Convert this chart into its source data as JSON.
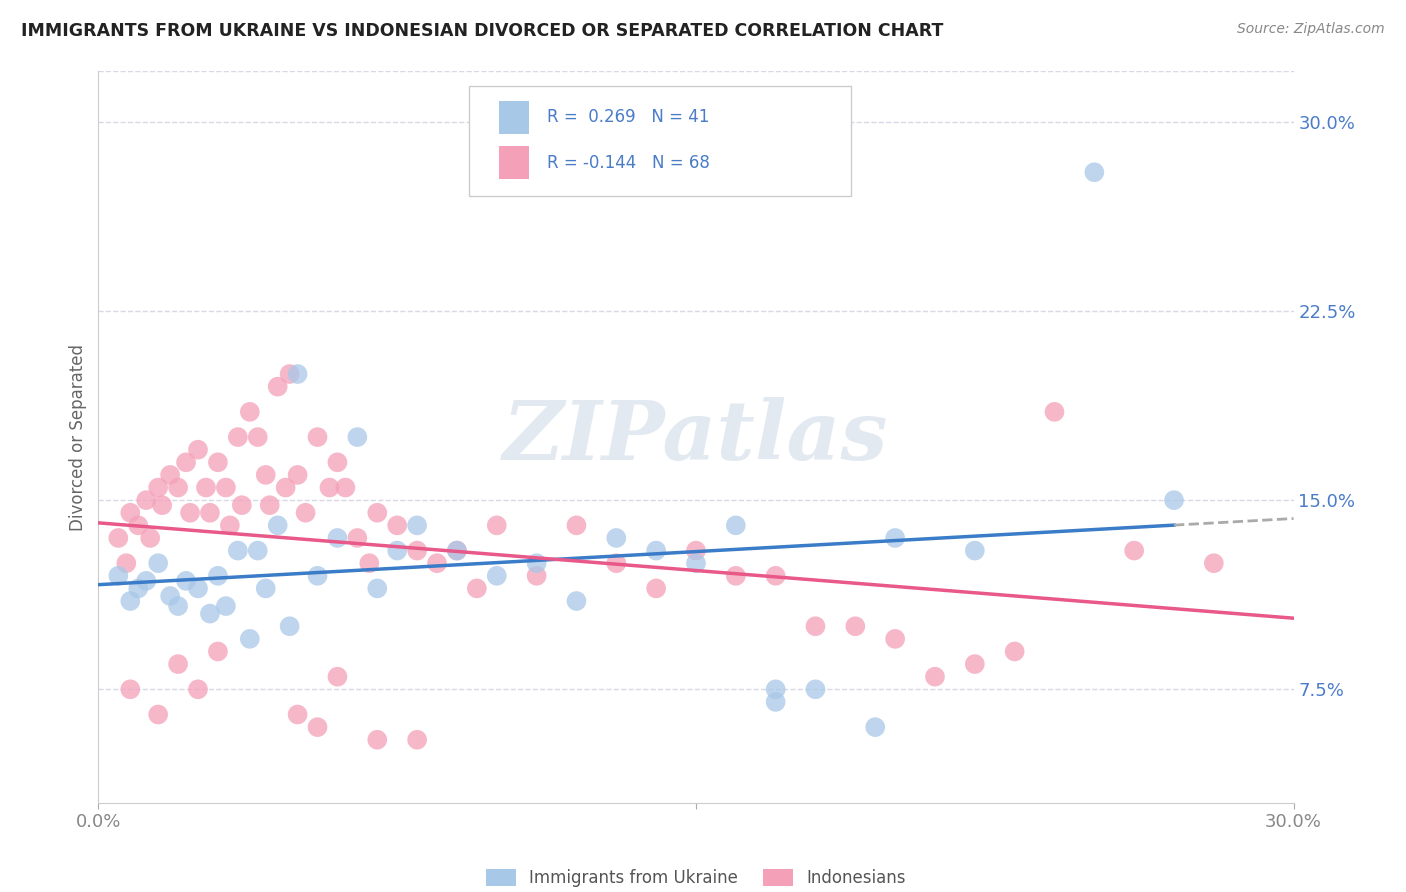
{
  "title": "IMMIGRANTS FROM UKRAINE VS INDONESIAN DIVORCED OR SEPARATED CORRELATION CHART",
  "source": "Source: ZipAtlas.com",
  "ylabel": "Divorced or Separated",
  "xlim": [
    0.0,
    0.3
  ],
  "ylim": [
    0.03,
    0.32
  ],
  "yticks": [
    0.075,
    0.15,
    0.225,
    0.3
  ],
  "ytick_labels": [
    "7.5%",
    "15.0%",
    "22.5%",
    "30.0%"
  ],
  "xtick_positions": [
    0.0,
    0.15,
    0.3
  ],
  "xtick_labels": [
    "0.0%",
    "",
    "30.0%"
  ],
  "legend_labels": [
    "Immigrants from Ukraine",
    "Indonesians"
  ],
  "blue_color": "#a8c8e8",
  "pink_color": "#f4a0b8",
  "blue_line_color": "#3a7cc8",
  "pink_line_color": "#e85888",
  "legend_text_color": "#4a7cc8",
  "R_blue": 0.269,
  "N_blue": 41,
  "R_pink": -0.144,
  "N_pink": 68,
  "background_color": "#ffffff",
  "grid_color": "#d8d8e8",
  "watermark": "ZIPatlas",
  "blue_scatter_x": [
    0.005,
    0.008,
    0.01,
    0.012,
    0.015,
    0.018,
    0.02,
    0.022,
    0.025,
    0.028,
    0.03,
    0.032,
    0.035,
    0.038,
    0.04,
    0.042,
    0.045,
    0.048,
    0.05,
    0.055,
    0.06,
    0.065,
    0.07,
    0.075,
    0.08,
    0.09,
    0.1,
    0.11,
    0.12,
    0.13,
    0.14,
    0.15,
    0.16,
    0.17,
    0.18,
    0.2,
    0.22,
    0.25,
    0.27,
    0.17,
    0.195
  ],
  "blue_scatter_y": [
    0.12,
    0.11,
    0.115,
    0.118,
    0.125,
    0.112,
    0.108,
    0.118,
    0.115,
    0.105,
    0.12,
    0.108,
    0.13,
    0.095,
    0.13,
    0.115,
    0.14,
    0.1,
    0.2,
    0.12,
    0.135,
    0.175,
    0.115,
    0.13,
    0.14,
    0.13,
    0.12,
    0.125,
    0.11,
    0.135,
    0.13,
    0.125,
    0.14,
    0.075,
    0.075,
    0.135,
    0.13,
    0.28,
    0.15,
    0.07,
    0.06
  ],
  "pink_scatter_x": [
    0.005,
    0.007,
    0.008,
    0.01,
    0.012,
    0.013,
    0.015,
    0.016,
    0.018,
    0.02,
    0.022,
    0.023,
    0.025,
    0.027,
    0.028,
    0.03,
    0.032,
    0.033,
    0.035,
    0.036,
    0.038,
    0.04,
    0.042,
    0.043,
    0.045,
    0.047,
    0.048,
    0.05,
    0.052,
    0.055,
    0.058,
    0.06,
    0.062,
    0.065,
    0.068,
    0.07,
    0.075,
    0.08,
    0.085,
    0.09,
    0.095,
    0.1,
    0.11,
    0.12,
    0.13,
    0.14,
    0.15,
    0.16,
    0.17,
    0.18,
    0.19,
    0.2,
    0.21,
    0.22,
    0.23,
    0.24,
    0.26,
    0.008,
    0.015,
    0.02,
    0.025,
    0.03,
    0.05,
    0.055,
    0.06,
    0.07,
    0.08,
    0.28
  ],
  "pink_scatter_y": [
    0.135,
    0.125,
    0.145,
    0.14,
    0.15,
    0.135,
    0.155,
    0.148,
    0.16,
    0.155,
    0.165,
    0.145,
    0.17,
    0.155,
    0.145,
    0.165,
    0.155,
    0.14,
    0.175,
    0.148,
    0.185,
    0.175,
    0.16,
    0.148,
    0.195,
    0.155,
    0.2,
    0.16,
    0.145,
    0.175,
    0.155,
    0.165,
    0.155,
    0.135,
    0.125,
    0.145,
    0.14,
    0.13,
    0.125,
    0.13,
    0.115,
    0.14,
    0.12,
    0.14,
    0.125,
    0.115,
    0.13,
    0.12,
    0.12,
    0.1,
    0.1,
    0.095,
    0.08,
    0.085,
    0.09,
    0.185,
    0.13,
    0.075,
    0.065,
    0.085,
    0.075,
    0.09,
    0.065,
    0.06,
    0.08,
    0.055,
    0.055,
    0.125
  ]
}
